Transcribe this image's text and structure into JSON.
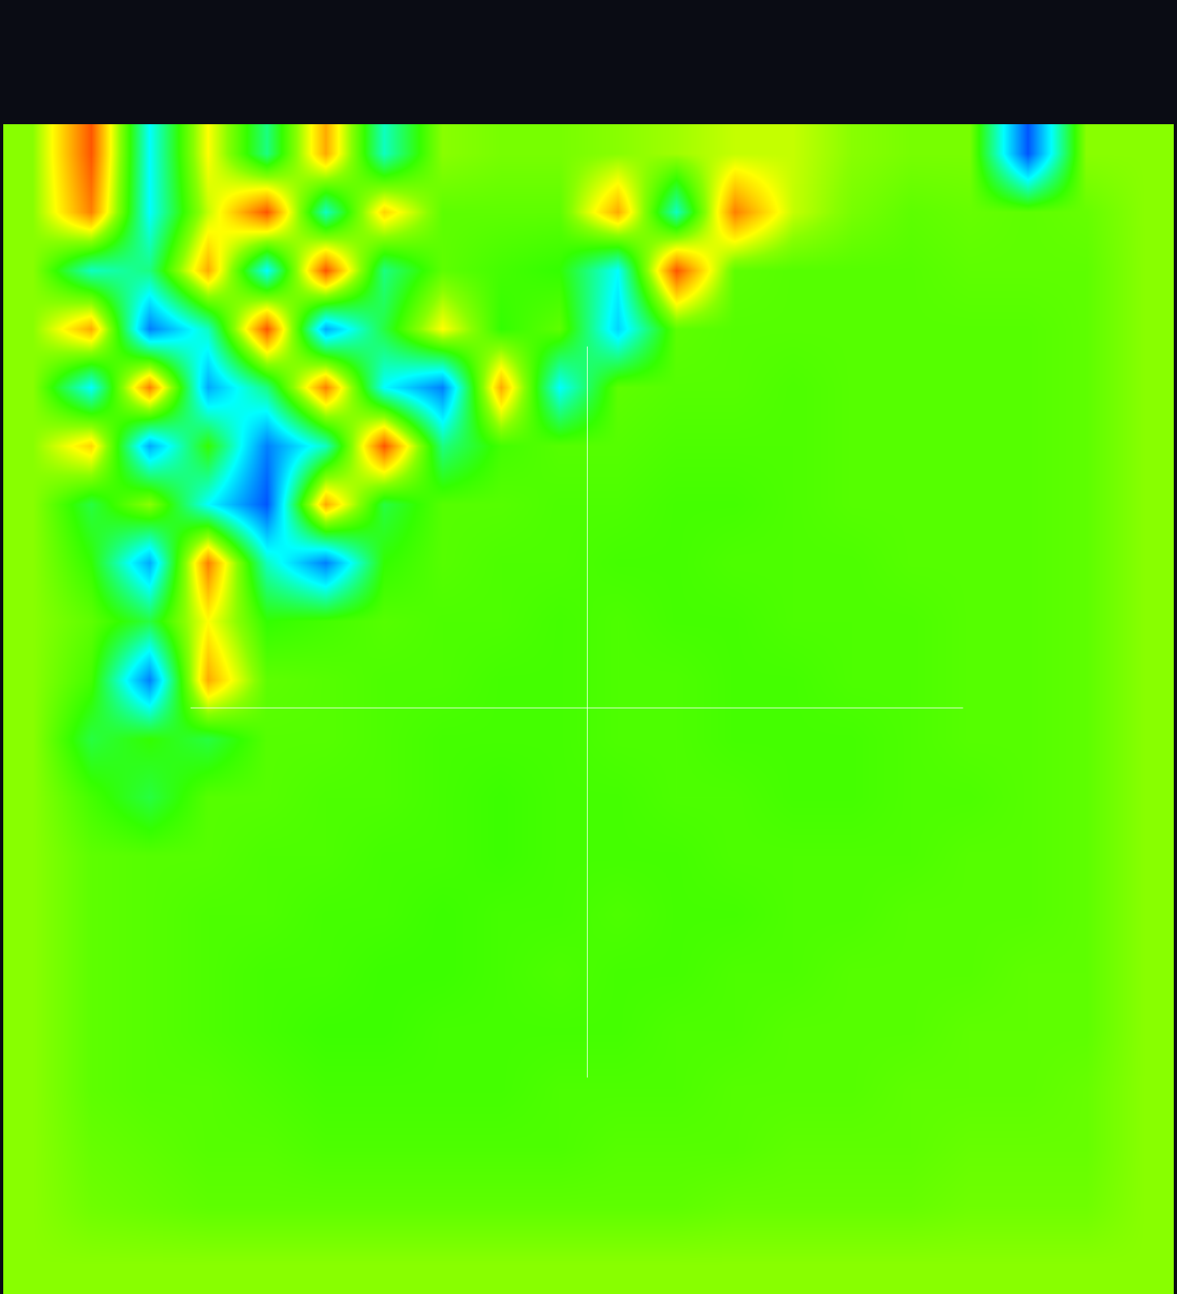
{
  "chart_data": {
    "type": "heatmap",
    "tick_labels": false,
    "zlim": [
      0,
      1
    ],
    "z": [
      [
        0.6,
        0.9,
        0.3,
        0.7,
        0.4,
        0.8,
        0.35,
        0.6,
        0.58,
        0.58,
        0.6,
        0.62,
        0.65,
        0.65,
        0.6,
        0.58,
        0.58,
        0.1,
        0.6,
        0.6
      ],
      [
        0.6,
        0.85,
        0.3,
        0.65,
        0.9,
        0.35,
        0.75,
        0.55,
        0.55,
        0.55,
        0.8,
        0.35,
        0.85,
        0.65,
        0.58,
        0.55,
        0.56,
        0.55,
        0.56,
        0.6
      ],
      [
        0.6,
        0.35,
        0.4,
        0.8,
        0.3,
        0.9,
        0.4,
        0.55,
        0.52,
        0.5,
        0.3,
        0.9,
        0.55,
        0.54,
        0.54,
        0.54,
        0.55,
        0.55,
        0.55,
        0.6
      ],
      [
        0.6,
        0.8,
        0.15,
        0.35,
        0.9,
        0.2,
        0.45,
        0.7,
        0.5,
        0.55,
        0.25,
        0.55,
        0.54,
        0.54,
        0.54,
        0.54,
        0.54,
        0.54,
        0.55,
        0.6
      ],
      [
        0.6,
        0.3,
        0.85,
        0.2,
        0.4,
        0.85,
        0.3,
        0.15,
        0.8,
        0.3,
        0.55,
        0.54,
        0.54,
        0.53,
        0.54,
        0.54,
        0.54,
        0.54,
        0.55,
        0.6
      ],
      [
        0.6,
        0.75,
        0.2,
        0.5,
        0.15,
        0.35,
        0.9,
        0.4,
        0.52,
        0.54,
        0.54,
        0.53,
        0.53,
        0.53,
        0.54,
        0.54,
        0.54,
        0.54,
        0.55,
        0.6
      ],
      [
        0.6,
        0.45,
        0.6,
        0.3,
        0.1,
        0.8,
        0.45,
        0.54,
        0.54,
        0.53,
        0.53,
        0.52,
        0.52,
        0.53,
        0.54,
        0.54,
        0.54,
        0.54,
        0.55,
        0.6
      ],
      [
        0.6,
        0.5,
        0.2,
        0.85,
        0.35,
        0.15,
        0.5,
        0.54,
        0.53,
        0.53,
        0.52,
        0.52,
        0.53,
        0.53,
        0.53,
        0.54,
        0.54,
        0.54,
        0.55,
        0.6
      ],
      [
        0.6,
        0.55,
        0.45,
        0.7,
        0.5,
        0.52,
        0.54,
        0.53,
        0.53,
        0.52,
        0.53,
        0.52,
        0.52,
        0.53,
        0.53,
        0.53,
        0.54,
        0.54,
        0.55,
        0.6
      ],
      [
        0.6,
        0.52,
        0.15,
        0.8,
        0.55,
        0.54,
        0.53,
        0.53,
        0.52,
        0.52,
        0.53,
        0.53,
        0.52,
        0.52,
        0.53,
        0.53,
        0.54,
        0.54,
        0.55,
        0.6
      ],
      [
        0.6,
        0.45,
        0.5,
        0.45,
        0.54,
        0.54,
        0.53,
        0.52,
        0.52,
        0.52,
        0.53,
        0.53,
        0.52,
        0.52,
        0.52,
        0.53,
        0.54,
        0.54,
        0.55,
        0.6
      ],
      [
        0.6,
        0.52,
        0.45,
        0.54,
        0.54,
        0.53,
        0.53,
        0.52,
        0.51,
        0.52,
        0.52,
        0.53,
        0.53,
        0.52,
        0.52,
        0.53,
        0.53,
        0.54,
        0.55,
        0.6
      ],
      [
        0.6,
        0.55,
        0.54,
        0.54,
        0.53,
        0.53,
        0.52,
        0.52,
        0.51,
        0.52,
        0.52,
        0.52,
        0.53,
        0.53,
        0.53,
        0.53,
        0.54,
        0.54,
        0.55,
        0.6
      ],
      [
        0.6,
        0.55,
        0.54,
        0.53,
        0.53,
        0.52,
        0.52,
        0.51,
        0.52,
        0.52,
        0.53,
        0.52,
        0.52,
        0.53,
        0.53,
        0.54,
        0.54,
        0.54,
        0.55,
        0.6
      ],
      [
        0.6,
        0.55,
        0.54,
        0.53,
        0.52,
        0.52,
        0.51,
        0.51,
        0.52,
        0.53,
        0.52,
        0.52,
        0.53,
        0.53,
        0.54,
        0.54,
        0.54,
        0.55,
        0.55,
        0.6
      ],
      [
        0.6,
        0.55,
        0.54,
        0.53,
        0.52,
        0.51,
        0.51,
        0.52,
        0.52,
        0.52,
        0.52,
        0.53,
        0.53,
        0.54,
        0.54,
        0.54,
        0.55,
        0.55,
        0.55,
        0.6
      ],
      [
        0.6,
        0.55,
        0.54,
        0.54,
        0.53,
        0.52,
        0.52,
        0.52,
        0.52,
        0.53,
        0.53,
        0.53,
        0.54,
        0.54,
        0.54,
        0.55,
        0.55,
        0.55,
        0.56,
        0.6
      ],
      [
        0.6,
        0.56,
        0.55,
        0.54,
        0.54,
        0.53,
        0.53,
        0.53,
        0.53,
        0.53,
        0.54,
        0.54,
        0.54,
        0.55,
        0.55,
        0.55,
        0.56,
        0.56,
        0.56,
        0.6
      ],
      [
        0.6,
        0.57,
        0.56,
        0.55,
        0.55,
        0.55,
        0.55,
        0.55,
        0.55,
        0.55,
        0.55,
        0.55,
        0.56,
        0.56,
        0.56,
        0.56,
        0.57,
        0.57,
        0.57,
        0.6
      ],
      [
        0.6,
        0.6,
        0.6,
        0.6,
        0.6,
        0.6,
        0.6,
        0.6,
        0.6,
        0.6,
        0.6,
        0.6,
        0.6,
        0.6,
        0.6,
        0.6,
        0.6,
        0.6,
        0.6,
        0.6
      ]
    ]
  }
}
